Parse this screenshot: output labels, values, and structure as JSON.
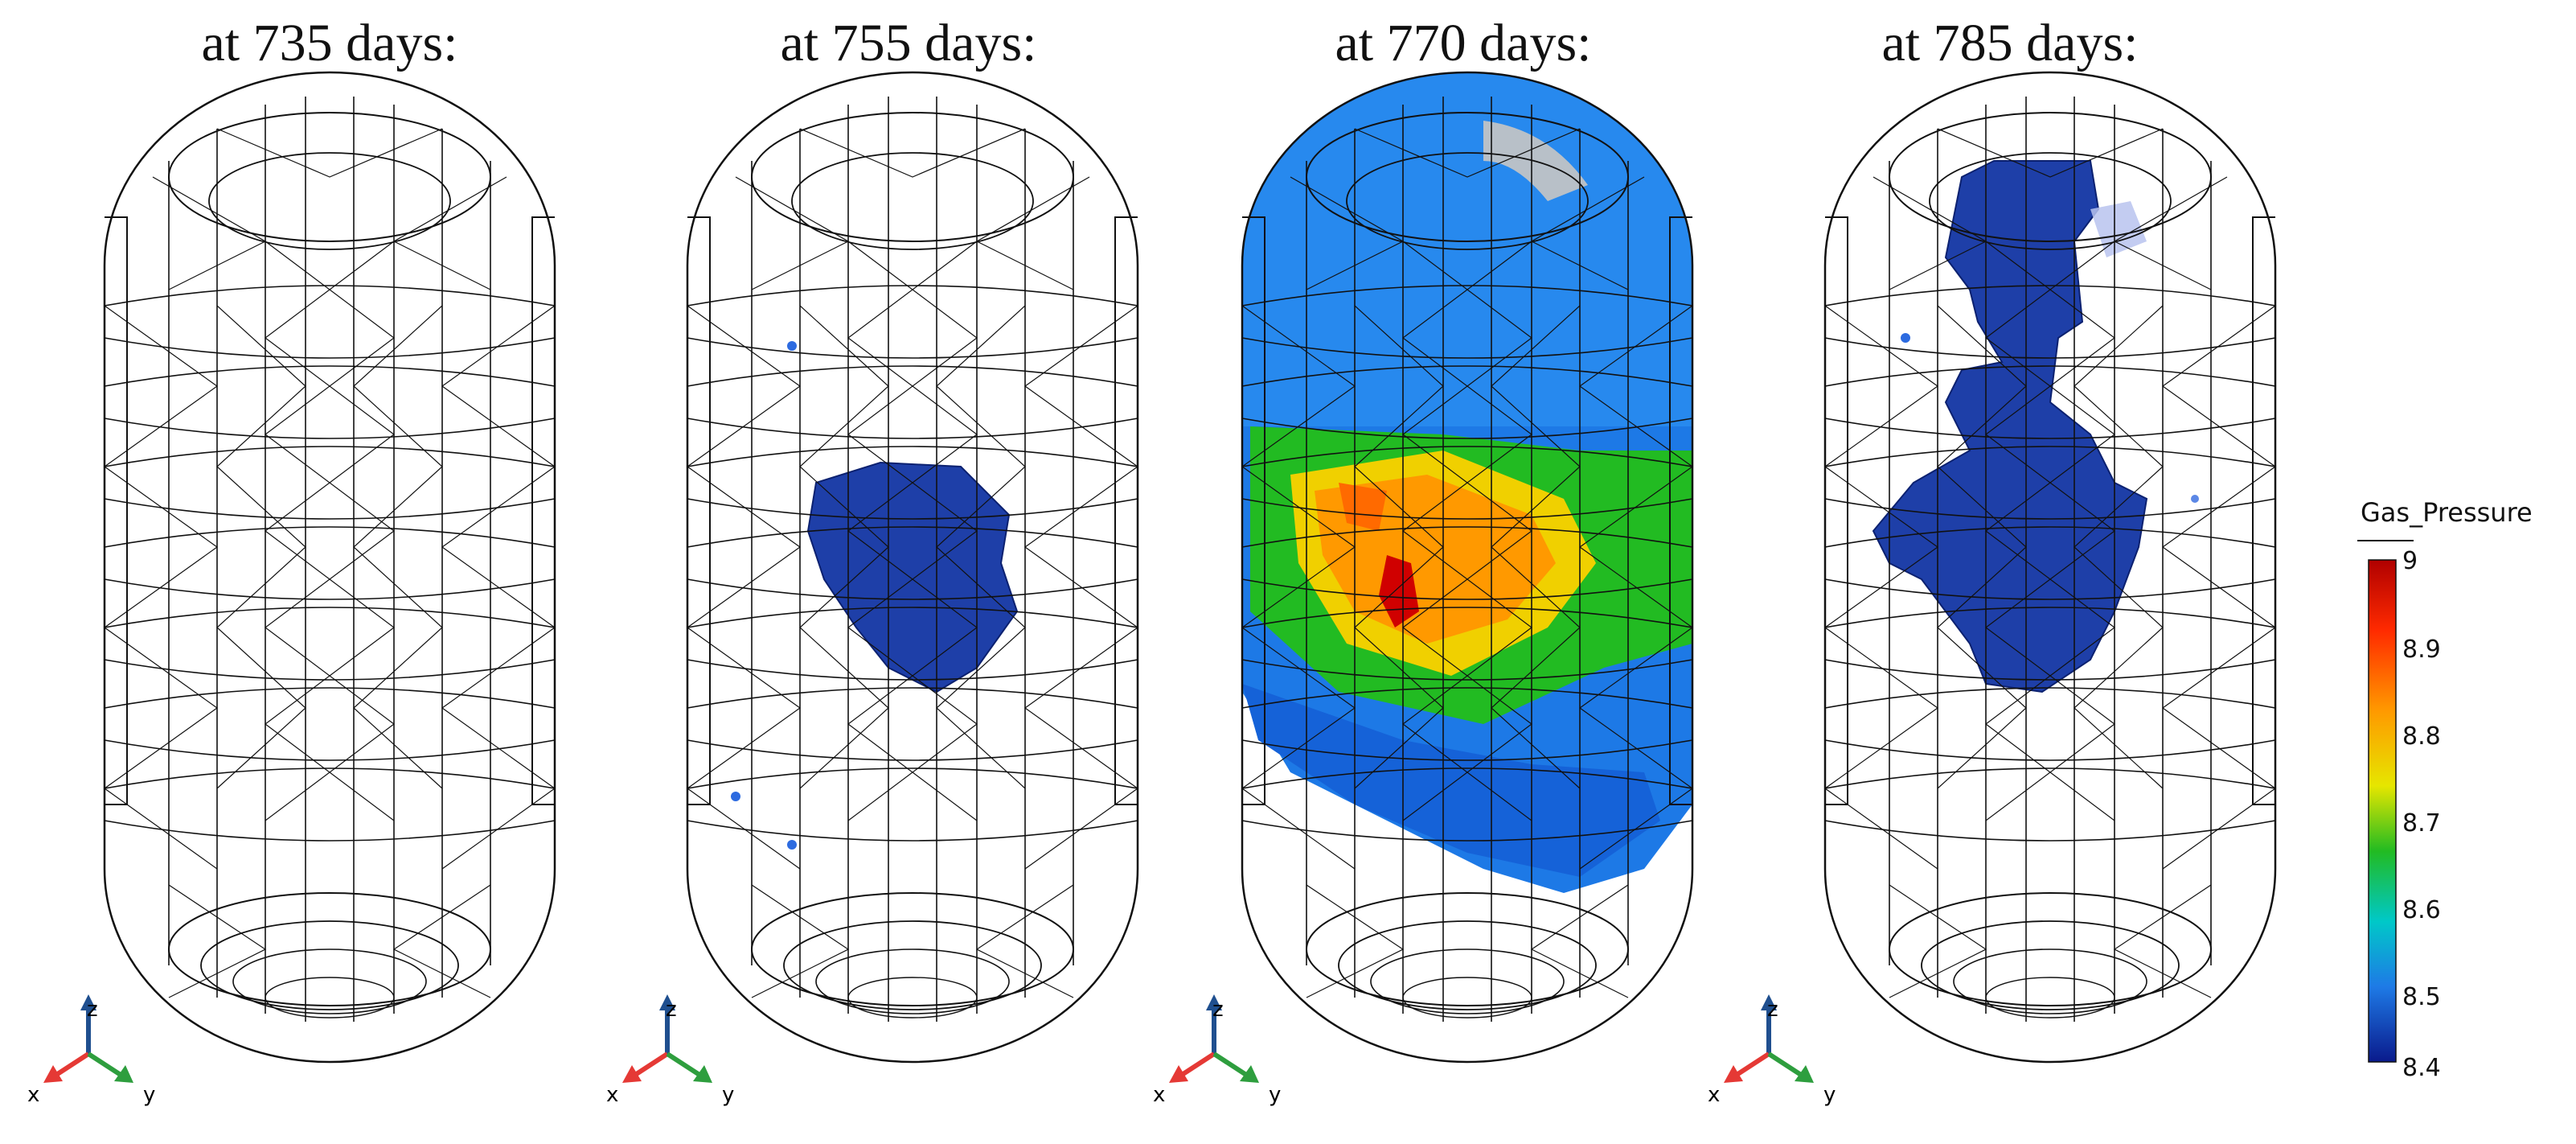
{
  "panels": [
    {
      "title": "at 735 days:",
      "state": "none"
    },
    {
      "title": "at 755 days:",
      "state": "small"
    },
    {
      "title": "at 770 days:",
      "state": "full"
    },
    {
      "title": "at 785 days:",
      "state": "partial"
    }
  ],
  "axes_triad": {
    "x": "x",
    "y": "y",
    "z": "z",
    "colors": {
      "x": "#e53935",
      "y": "#2e9e3e",
      "z": "#1f4f8f"
    }
  },
  "colorbar": {
    "title": "Gas_Pressure",
    "min": 8.4,
    "max": 9,
    "ticks": [
      "9",
      "8.9",
      "8.8",
      "8.7",
      "8.6",
      "8.5",
      "8.4"
    ],
    "colors": [
      "#b00000",
      "#ff2a00",
      "#ff9900",
      "#e6e600",
      "#22bb22",
      "#00c8c8",
      "#1e7ae6",
      "#0a1a8c"
    ]
  }
}
